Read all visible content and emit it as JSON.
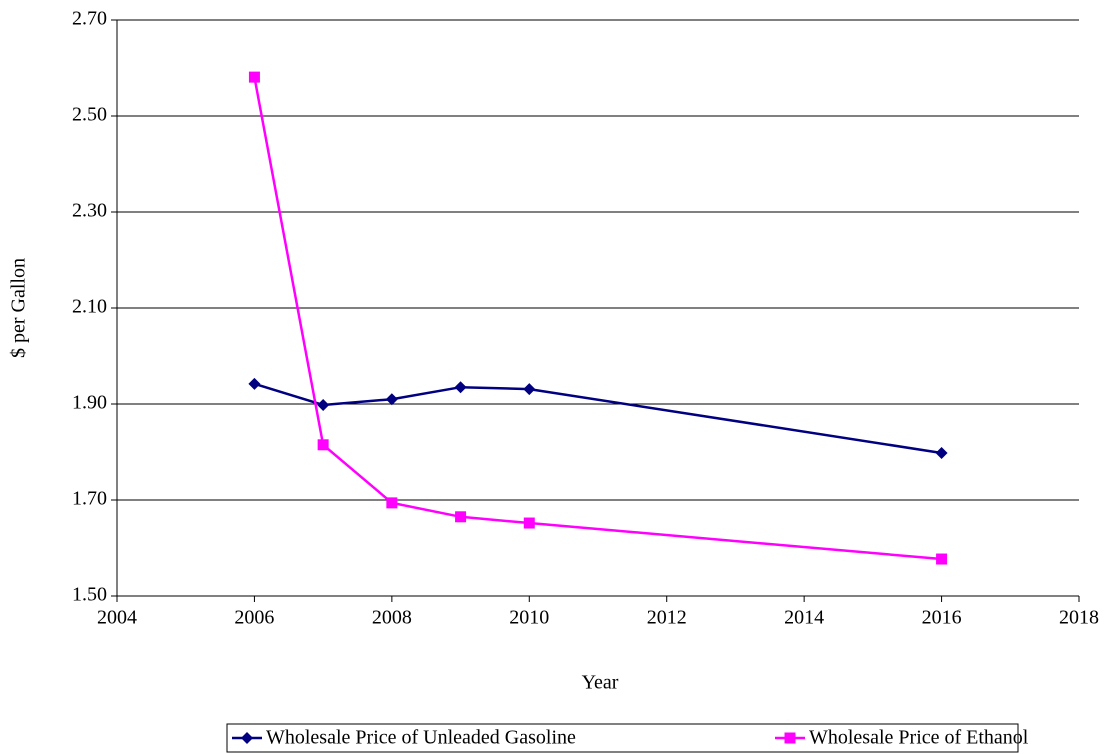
{
  "chart_data": {
    "type": "line",
    "x_label": "Year",
    "y_label": "$ per Gallon",
    "x": [
      2006,
      2007,
      2008,
      2009,
      2010,
      2016
    ],
    "series": [
      {
        "name": "Wholesale Price of Unleaded Gasoline",
        "color": "#000080",
        "marker": "diamond",
        "values": [
          1.942,
          1.898,
          1.91,
          1.935,
          1.931,
          1.798
        ]
      },
      {
        "name": "Wholesale Price of Ethanol",
        "color": "#ff00ff",
        "marker": "square",
        "values": [
          2.581,
          1.815,
          1.694,
          1.665,
          1.652,
          1.577
        ]
      }
    ],
    "xlim": [
      2004,
      2018
    ],
    "xticks": [
      2004,
      2006,
      2008,
      2010,
      2012,
      2014,
      2016,
      2018
    ],
    "ylim": [
      1.5,
      2.7
    ],
    "yticks": [
      {
        "value": 1.5,
        "label": "1.50"
      },
      {
        "value": 1.7,
        "label": "1.70"
      },
      {
        "value": 1.9,
        "label": "1.90"
      },
      {
        "value": 2.1,
        "label": "2.10"
      },
      {
        "value": 2.3,
        "label": "2.30"
      },
      {
        "value": 2.5,
        "label": "2.50"
      },
      {
        "value": 2.7,
        "label": "2.70"
      }
    ],
    "grid": true,
    "legend": "bottom"
  }
}
